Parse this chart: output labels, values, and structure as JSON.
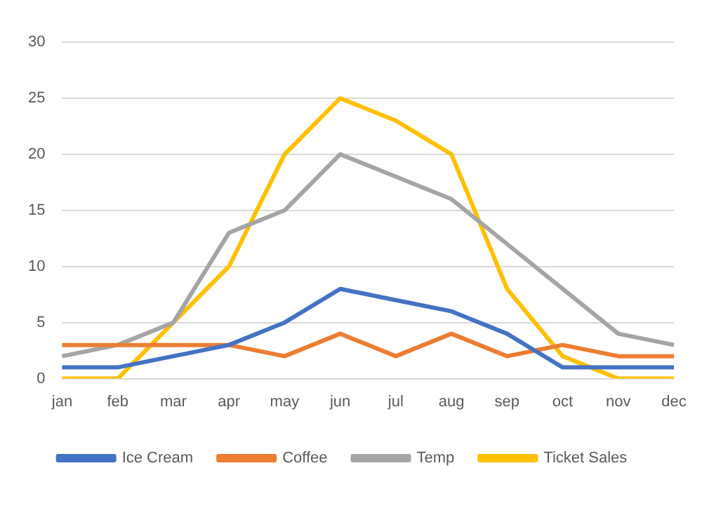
{
  "chart_data": {
    "type": "line",
    "categories": [
      "jan",
      "feb",
      "mar",
      "apr",
      "may",
      "jun",
      "jul",
      "aug",
      "sep",
      "oct",
      "nov",
      "dec"
    ],
    "series": [
      {
        "name": "Ice Cream",
        "color": "#4472c4",
        "values": [
          1,
          1,
          2,
          3,
          5,
          8,
          7,
          6,
          4,
          1,
          1,
          1
        ]
      },
      {
        "name": "Coffee",
        "color": "#ed7d31",
        "values": [
          3,
          3,
          3,
          3,
          2,
          4,
          2,
          4,
          2,
          3,
          2,
          2
        ]
      },
      {
        "name": "Temp",
        "color": "#a5a5a5",
        "values": [
          2,
          3,
          5,
          13,
          15,
          20,
          18,
          16,
          12,
          8,
          4,
          3
        ]
      },
      {
        "name": "Ticket Sales",
        "color": "#ffc000",
        "values": [
          0,
          0,
          5,
          10,
          20,
          25,
          23,
          20,
          8,
          2,
          0,
          0
        ]
      }
    ],
    "ylim": [
      0,
      30
    ],
    "yticks": [
      0,
      5,
      10,
      15,
      20,
      25,
      30
    ],
    "grid": "y",
    "legend": "bottom",
    "marker": "none",
    "line_style": "solid"
  }
}
